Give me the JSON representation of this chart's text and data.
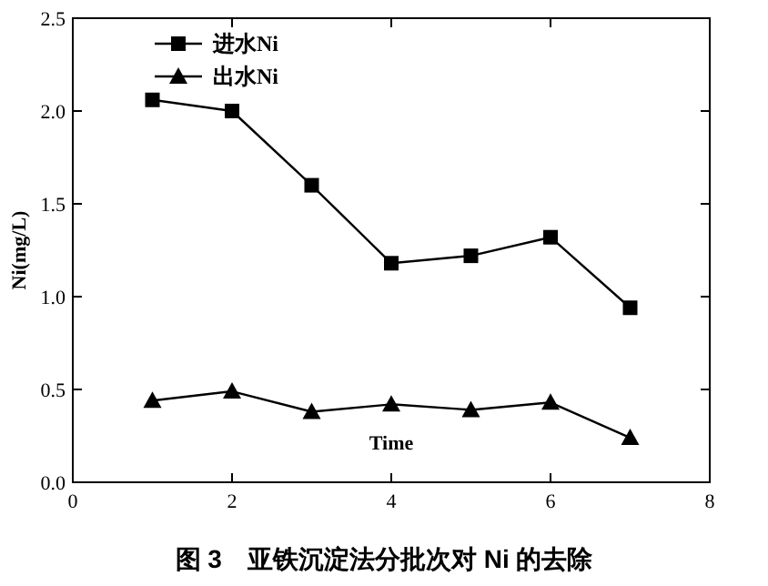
{
  "chart_data": {
    "type": "line",
    "title": "图 3　亚铁沉淀法分批次对 Ni 的去除",
    "xlabel": "Time",
    "ylabel": "Ni(mg/L)",
    "x": [
      1,
      2,
      3,
      4,
      5,
      6,
      7
    ],
    "series": [
      {
        "name": "进水Ni",
        "color": "#000000",
        "marker": "square",
        "values": [
          2.06,
          2.0,
          1.6,
          1.18,
          1.22,
          1.32,
          0.94
        ]
      },
      {
        "name": "出水Ni",
        "color": "#000000",
        "marker": "triangle",
        "values": [
          0.44,
          0.49,
          0.38,
          0.42,
          0.39,
          0.43,
          0.24
        ]
      }
    ],
    "xlim": [
      0,
      8
    ],
    "xticks": [
      0,
      2,
      4,
      6,
      8
    ],
    "ylim": [
      0,
      2.5
    ],
    "yticks": [
      {
        "value": 0,
        "label": "0.0"
      },
      {
        "value": 0.5,
        "label": "0.5"
      },
      {
        "value": 1,
        "label": "1.0"
      },
      {
        "value": 1.5,
        "label": "1.5"
      },
      {
        "value": 2,
        "label": "2.0"
      },
      {
        "value": 2.5,
        "label": "2.5"
      }
    ],
    "legend": "top left",
    "line_style": "solid"
  }
}
